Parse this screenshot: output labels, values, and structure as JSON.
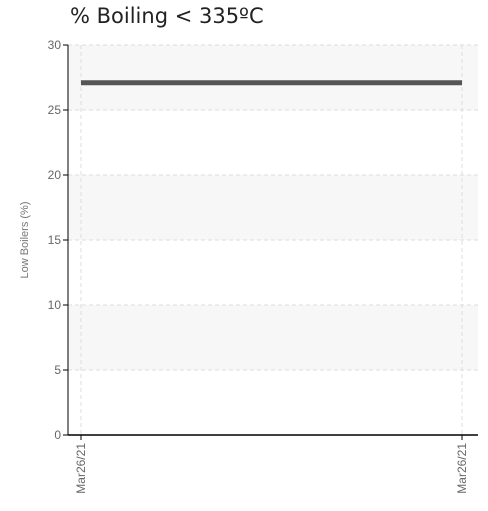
{
  "chart_data": {
    "type": "line",
    "title": "% Boiling < 335ºC",
    "xlabel": "",
    "ylabel": "Low Boilers (%)",
    "x": [
      "Mar26/21",
      "Mar26/21"
    ],
    "series": [
      {
        "values": [
          27.1,
          27.1
        ]
      }
    ],
    "ylim": [
      0,
      30
    ],
    "yticks": [
      0,
      5,
      10,
      15,
      20,
      25,
      30
    ],
    "xticks": [
      "Mar26/21",
      "Mar26/21"
    ],
    "grid": true,
    "colors": {
      "line": "#555555",
      "band": "#f7f7f7",
      "grid": "#dddddd",
      "axis": "#000000"
    }
  }
}
